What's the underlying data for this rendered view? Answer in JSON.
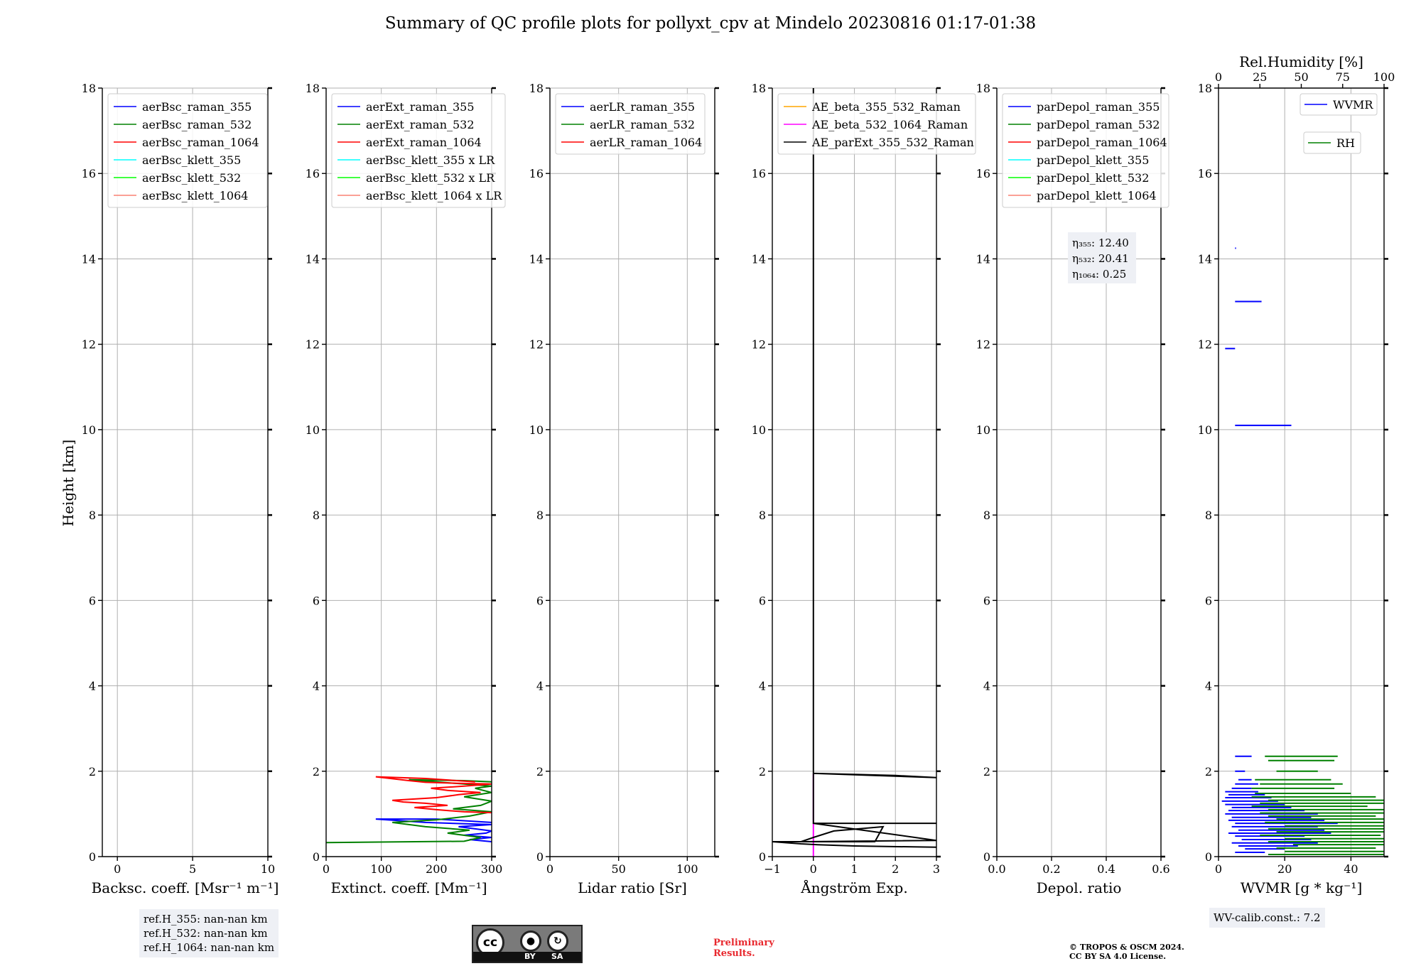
{
  "title": "Summary of QC profile plots for pollyxt_cpv at Mindelo 20230816 01:17-01:38",
  "ylabel": "Height [km]",
  "ytick_labels": [
    "0",
    "2",
    "4",
    "6",
    "8",
    "10",
    "12",
    "14",
    "16",
    "18"
  ],
  "ylim": [
    0,
    18
  ],
  "colors": {
    "c355": "#0000ff",
    "c532": "#008000",
    "c1064": "#ff0000",
    "k355": "#00ffff",
    "k532": "#00ff00",
    "k1064": "#fa8072",
    "orange": "#ffa500",
    "magenta": "#ff00ff",
    "black": "#000000",
    "box": "#eef0f5",
    "grid": "#b0b0b0"
  },
  "chart_data": [
    {
      "id": "bsc",
      "type": "line",
      "xlabel": "Backsc. coeff. [Msr⁻¹ m⁻¹]",
      "xlim": [
        -1,
        10
      ],
      "xticks": [
        0,
        5,
        10
      ],
      "xtick_labels": [
        "0",
        "5",
        "10"
      ],
      "legend": [
        "aerBsc_raman_355",
        "aerBsc_raman_532",
        "aerBsc_raman_1064",
        "aerBsc_klett_355",
        "aerBsc_klett_532",
        "aerBsc_klett_1064"
      ],
      "legend_colors": [
        "c355",
        "c532",
        "c1064",
        "k355",
        "k532",
        "k1064"
      ],
      "series": []
    },
    {
      "id": "ext",
      "type": "line",
      "xlabel": "Extinct. coeff. [Mm⁻¹]",
      "xlim": [
        0,
        300
      ],
      "xticks": [
        0,
        100,
        200,
        300
      ],
      "xtick_labels": [
        "0",
        "100",
        "200",
        "300"
      ],
      "legend": [
        "aerExt_raman_355",
        "aerExt_raman_532",
        "aerExt_raman_1064",
        "aerBsc_klett_355 x LR",
        "aerBsc_klett_532 x LR",
        "aerBsc_klett_1064 x LR"
      ],
      "legend_colors": [
        "c355",
        "c532",
        "c1064",
        "k355",
        "k532",
        "k1064"
      ],
      "series": [
        {
          "name": "aerExt_raman_355",
          "color": "c355",
          "x": [
            300,
            260,
            300,
            250,
            290,
            300,
            270,
            240,
            300,
            180,
            90,
            200,
            250,
            300
          ],
          "y": [
            0.35,
            0.4,
            0.45,
            0.5,
            0.55,
            0.6,
            0.65,
            0.7,
            0.75,
            0.8,
            0.88,
            0.88,
            0.84,
            0.8
          ]
        },
        {
          "name": "aerExt_raman_532",
          "color": "c532",
          "x": [
            0,
            250,
            280,
            220,
            260,
            180,
            150,
            120,
            200,
            260,
            300,
            230,
            280,
            300,
            250,
            300,
            270,
            300,
            150,
            250,
            300
          ],
          "y": [
            0.33,
            0.36,
            0.45,
            0.55,
            0.62,
            0.7,
            0.75,
            0.8,
            0.86,
            0.95,
            1.05,
            1.12,
            1.2,
            1.3,
            1.4,
            1.5,
            1.6,
            1.65,
            1.8,
            1.78,
            1.75
          ]
        },
        {
          "name": "aerExt_raman_1064",
          "color": "c1064",
          "x": [
            300,
            250,
            200,
            160,
            220,
            180,
            140,
            120,
            200,
            240,
            280,
            220,
            190,
            250,
            300,
            230,
            180,
            150,
            90,
            180,
            270
          ],
          "y": [
            1.03,
            1.05,
            1.1,
            1.15,
            1.2,
            1.25,
            1.28,
            1.32,
            1.38,
            1.45,
            1.5,
            1.55,
            1.6,
            1.65,
            1.7,
            1.72,
            1.74,
            1.78,
            1.87,
            1.83,
            1.75
          ]
        }
      ]
    },
    {
      "id": "lr",
      "type": "line",
      "xlabel": "Lidar ratio [Sr]",
      "xlim": [
        0,
        120
      ],
      "xticks": [
        0,
        50,
        100
      ],
      "xtick_labels": [
        "0",
        "50",
        "100"
      ],
      "legend": [
        "aerLR_raman_355",
        "aerLR_raman_532",
        "aerLR_raman_1064"
      ],
      "legend_colors": [
        "c355",
        "c532",
        "c1064"
      ],
      "series": []
    },
    {
      "id": "ae",
      "type": "line",
      "xlabel": "Ångström Exp.",
      "xlim": [
        -1,
        3
      ],
      "xticks": [
        -1,
        0,
        1,
        2,
        3
      ],
      "xtick_labels": [
        "−1",
        "0",
        "1",
        "2",
        "3"
      ],
      "legend": [
        "AE_beta_355_532_Raman",
        "AE_beta_532_1064_Raman",
        "AE_parExt_355_532_Raman"
      ],
      "legend_colors": [
        "orange",
        "magenta",
        "black"
      ],
      "series": [
        {
          "name": "AE_beta_532_1064_Raman",
          "color": "magenta",
          "x": [
            0,
            0
          ],
          "y": [
            0.0,
            1.95
          ]
        },
        {
          "name": "AE_parExt_355_532_Raman",
          "color": "black",
          "x": [
            3,
            1.0,
            0.1,
            -0.3,
            -1.0,
            1.5,
            1.7,
            0.5,
            0.0,
            -0.3,
            3,
            0.0,
            3,
            0.0,
            0.0,
            2.0,
            3.0,
            0.0,
            0.0
          ],
          "y": [
            0.22,
            0.25,
            0.28,
            0.3,
            0.35,
            0.35,
            0.7,
            0.6,
            0.45,
            0.35,
            0.38,
            0.78,
            0.78,
            0.78,
            1.95,
            1.9,
            1.85,
            1.95,
            18.0
          ]
        }
      ]
    },
    {
      "id": "pdr",
      "type": "line",
      "xlabel": "Depol. ratio",
      "xlim": [
        0,
        0.6
      ],
      "xticks": [
        0.0,
        0.2,
        0.4,
        0.6
      ],
      "xtick_labels": [
        "0.0",
        "0.2",
        "0.4",
        "0.6"
      ],
      "legend": [
        "parDepol_raman_355",
        "parDepol_raman_532",
        "parDepol_raman_1064",
        "parDepol_klett_355",
        "parDepol_klett_532",
        "parDepol_klett_1064"
      ],
      "legend_colors": [
        "c355",
        "c532",
        "c1064",
        "k355",
        "k532",
        "k1064"
      ],
      "series": [],
      "eta": [
        "η₃₅₅: 12.40",
        "η₅₃₂: 20.41",
        "η₁₀₆₄: 0.25"
      ]
    },
    {
      "id": "wv",
      "type": "line",
      "xlabel": "WVMR [g * kg⁻¹]",
      "xlim": [
        0,
        50
      ],
      "xticks": [
        0,
        20,
        40
      ],
      "xtick_labels": [
        "0",
        "20",
        "40"
      ],
      "top_xlabel": "Rel.Humidity [%]",
      "top_xlim": [
        0,
        100
      ],
      "top_xticks": [
        0,
        25,
        50,
        75,
        100
      ],
      "top_xtick_labels": [
        "0",
        "25",
        "50",
        "75",
        "100"
      ],
      "legend": [
        "WVMR",
        "RH"
      ],
      "legend_colors": [
        "c355",
        "c532"
      ],
      "series": [
        {
          "name": "WVMR",
          "color": "c355",
          "x": [
            5,
            12,
            3,
            8,
            15,
            6,
            20,
            4,
            10,
            18,
            5,
            14,
            22,
            8,
            4,
            12,
            25,
            6,
            16,
            9,
            3,
            11,
            19,
            7,
            13,
            5,
            9,
            6,
            14,
            8,
            5,
            11,
            7
          ],
          "y": [
            0.1,
            0.2,
            0.3,
            0.4,
            0.45,
            0.55,
            0.6,
            0.7,
            0.75,
            0.85,
            0.9,
            1.0,
            1.05,
            1.1,
            1.2,
            1.25,
            1.3,
            1.35,
            1.4,
            1.45,
            1.5,
            1.55,
            1.6,
            1.65,
            1.7,
            1.85,
            1.95,
            2.05,
            2.2,
            2.35,
            10.1,
            12.0,
            13.0
          ],
          "style": "horizontal-segments",
          "segments": [
            [
              5,
              14,
              0.1
            ],
            [
              8,
              20,
              0.18
            ],
            [
              6,
              24,
              0.25
            ],
            [
              4,
              30,
              0.32
            ],
            [
              7,
              28,
              0.4
            ],
            [
              5,
              26,
              0.48
            ],
            [
              3,
              34,
              0.55
            ],
            [
              6,
              32,
              0.62
            ],
            [
              4,
              30,
              0.7
            ],
            [
              5,
              36,
              0.78
            ],
            [
              3,
              32,
              0.85
            ],
            [
              4,
              28,
              0.92
            ],
            [
              2,
              30,
              1.0
            ],
            [
              3,
              26,
              1.08
            ],
            [
              4,
              22,
              1.15
            ],
            [
              2,
              20,
              1.22
            ],
            [
              1,
              18,
              1.3
            ],
            [
              2,
              16,
              1.38
            ],
            [
              3,
              14,
              1.45
            ],
            [
              2,
              12,
              1.52
            ],
            [
              4,
              10,
              1.6
            ],
            [
              5,
              12,
              1.7
            ],
            [
              6,
              10,
              1.8
            ],
            [
              5,
              8,
              2.0
            ],
            [
              5,
              10,
              2.35
            ],
            [
              5,
              22,
              10.1
            ],
            [
              2,
              5,
              11.9
            ],
            [
              5,
              13,
              13.0
            ],
            [
              5,
              5.3,
              14.25
            ]
          ]
        },
        {
          "name": "RH",
          "color": "c532",
          "segments_rh": [
            [
              30,
              100,
              0.05
            ],
            [
              40,
              100,
              0.12
            ],
            [
              35,
              95,
              0.2
            ],
            [
              45,
              100,
              0.28
            ],
            [
              30,
              100,
              0.35
            ],
            [
              40,
              100,
              0.42
            ],
            [
              25,
              98,
              0.5
            ],
            [
              35,
              100,
              0.58
            ],
            [
              30,
              100,
              0.65
            ],
            [
              40,
              100,
              0.72
            ],
            [
              28,
              100,
              0.8
            ],
            [
              35,
              100,
              0.88
            ],
            [
              30,
              95,
              0.95
            ],
            [
              25,
              100,
              1.02
            ],
            [
              30,
              100,
              1.1
            ],
            [
              20,
              90,
              1.18
            ],
            [
              25,
              100,
              1.25
            ],
            [
              30,
              100,
              1.32
            ],
            [
              20,
              95,
              1.4
            ],
            [
              22,
              80,
              1.48
            ],
            [
              20,
              70,
              1.6
            ],
            [
              25,
              75,
              1.7
            ],
            [
              22,
              68,
              1.8
            ],
            [
              35,
              60,
              2.0
            ],
            [
              30,
              70,
              2.25
            ],
            [
              28,
              72,
              2.35
            ]
          ]
        }
      ]
    }
  ],
  "ref_lines": [
    "ref.H_355: nan-nan km",
    "ref.H_532: nan-nan km",
    "ref.H_1064: nan-nan km"
  ],
  "wv_calib": "WV-calib.const.: 7.2",
  "cc_badge": {
    "cc": "cc",
    "by": "BY",
    "sa": "SA"
  },
  "preliminary": [
    "Preliminary",
    "Results."
  ],
  "copyright": [
    "© TROPOS & OSCM 2024.",
    "CC BY SA 4.0 License."
  ]
}
